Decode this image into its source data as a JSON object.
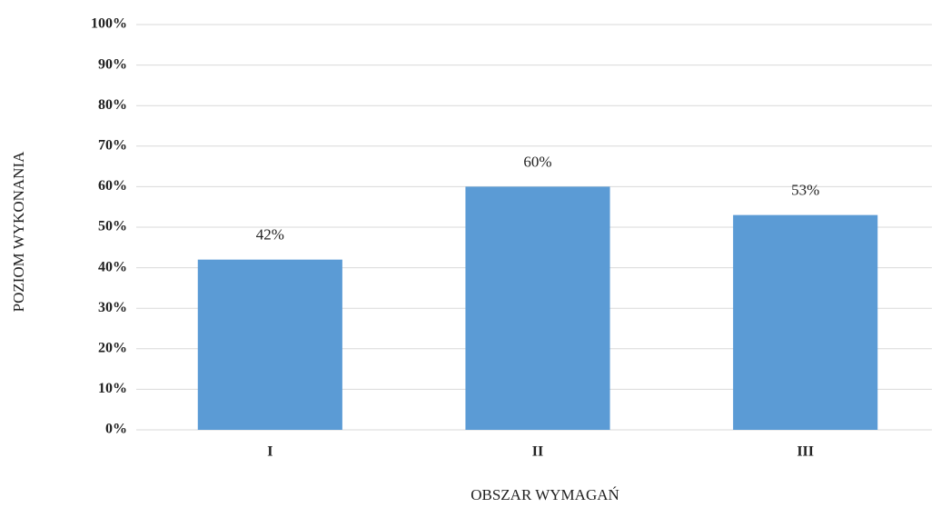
{
  "chart_data": {
    "type": "bar",
    "categories": [
      "I",
      "II",
      "III"
    ],
    "values": [
      42,
      60,
      53
    ],
    "value_labels": [
      "42%",
      "60%",
      "53%"
    ],
    "color": "#5b9bd5",
    "ylim": [
      0,
      100
    ],
    "yticks": [
      {
        "value": 0,
        "label": "0%"
      },
      {
        "value": 10,
        "label": "10%"
      },
      {
        "value": 20,
        "label": "20%"
      },
      {
        "value": 30,
        "label": "30%"
      },
      {
        "value": 40,
        "label": "40%"
      },
      {
        "value": 50,
        "label": "50%"
      },
      {
        "value": 60,
        "label": "60%"
      },
      {
        "value": 70,
        "label": "70%"
      },
      {
        "value": 80,
        "label": "80%"
      },
      {
        "value": 90,
        "label": "90%"
      },
      {
        "value": 100,
        "label": "100%"
      }
    ],
    "grid": true,
    "xlabel": "OBSZAR WYMAGAŃ",
    "ylabel": "POZIOM WYKONANIA"
  }
}
